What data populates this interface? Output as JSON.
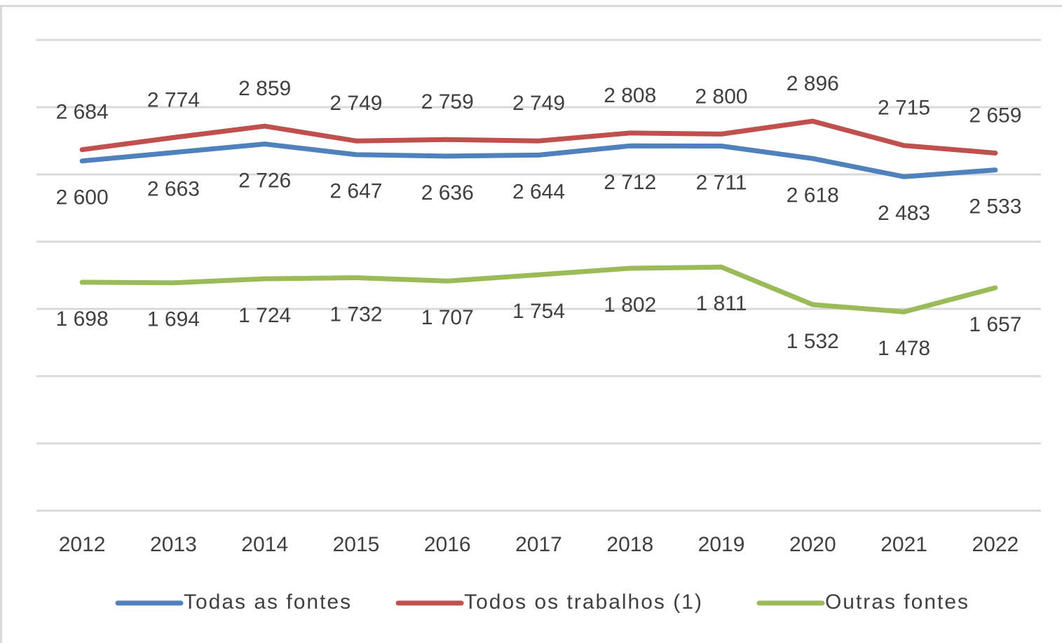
{
  "chart_data": {
    "type": "line",
    "categories": [
      "2012",
      "2013",
      "2014",
      "2015",
      "2016",
      "2017",
      "2018",
      "2019",
      "2020",
      "2021",
      "2022"
    ],
    "series": [
      {
        "name": "Todas as fontes",
        "color": "#4f81bd",
        "values": [
          2600,
          2663,
          2726,
          2647,
          2636,
          2644,
          2712,
          2711,
          2618,
          2483,
          2533
        ],
        "value_labels": [
          "2 600",
          "2 663",
          "2 726",
          "2 647",
          "2 636",
          "2 644",
          "2 712",
          "2 711",
          "2 618",
          "2 483",
          "2 533"
        ]
      },
      {
        "name": "Todos os trabalhos (1)",
        "color": "#c0504d",
        "values": [
          2684,
          2774,
          2859,
          2749,
          2759,
          2749,
          2808,
          2800,
          2896,
          2715,
          2659
        ],
        "value_labels": [
          "2 684",
          "2 774",
          "2 859",
          "2 749",
          "2 759",
          "2 749",
          "2 808",
          "2 800",
          "2 896",
          "2 715",
          "2 659"
        ]
      },
      {
        "name": "Outras fontes",
        "color": "#9bbb59",
        "values": [
          1698,
          1694,
          1724,
          1732,
          1707,
          1754,
          1802,
          1811,
          1532,
          1478,
          1657
        ],
        "value_labels": [
          "1 698",
          "1 694",
          "1 724",
          "1 732",
          "1 707",
          "1 754",
          "1 802",
          "1 811",
          "1 532",
          "1 478",
          "1 657"
        ]
      }
    ],
    "ylim": [
      0,
      3500
    ],
    "yticks": [
      0,
      500,
      1000,
      1500,
      2000,
      2500,
      3000,
      3500
    ],
    "grid": true,
    "legend": "bottom"
  }
}
